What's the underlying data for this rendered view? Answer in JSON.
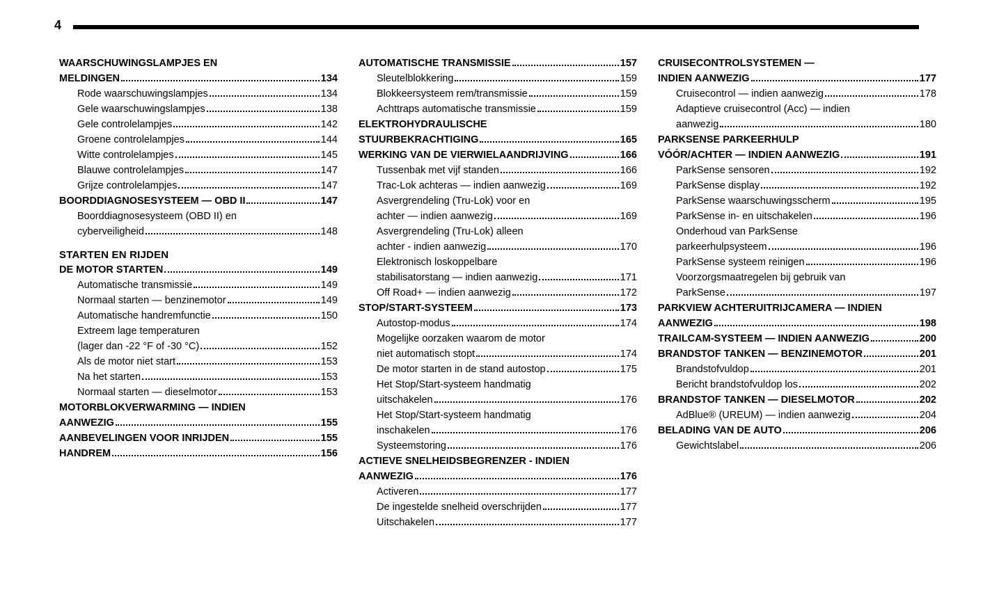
{
  "page_number": "4",
  "columns": [
    {
      "groups": [
        {
          "lines": [
            {
              "type": "wrap",
              "bold": true,
              "indent": 0,
              "text": "WAARSCHUWINGSLAMPJES EN"
            },
            {
              "type": "toc",
              "bold": true,
              "indent": 0,
              "label": "MELDINGEN",
              "page": "134"
            },
            {
              "type": "toc",
              "bold": false,
              "indent": 1,
              "label": "Rode waarschuwingslampjes",
              "page": "134"
            },
            {
              "type": "toc",
              "bold": false,
              "indent": 1,
              "label": "Gele waarschuwingslampjes",
              "page": "138"
            },
            {
              "type": "toc",
              "bold": false,
              "indent": 1,
              "label": "Gele controlelampjes",
              "page": "142"
            },
            {
              "type": "toc",
              "bold": false,
              "indent": 1,
              "label": "Groene controlelampjes",
              "page": "144"
            },
            {
              "type": "toc",
              "bold": false,
              "indent": 1,
              "label": "Witte controlelampjes",
              "page": "145"
            },
            {
              "type": "toc",
              "bold": false,
              "indent": 1,
              "label": "Blauwe controlelampjes",
              "page": "147"
            },
            {
              "type": "toc",
              "bold": false,
              "indent": 1,
              "label": "Grijze controlelampjes",
              "page": "147"
            },
            {
              "type": "toc",
              "bold": true,
              "indent": 0,
              "label": "BOORDDIAGNOSESYSTEEM — OBD II",
              "page": "147"
            },
            {
              "type": "wrap",
              "bold": false,
              "indent": 1,
              "text": "Boorddiagnosesysteem (OBD II) en"
            },
            {
              "type": "toc",
              "bold": false,
              "indent": 1,
              "label": "cyberveiligheid",
              "page": "148"
            }
          ]
        },
        {
          "title": "STARTEN EN RIJDEN",
          "lines": [
            {
              "type": "toc",
              "bold": true,
              "indent": 0,
              "label": "DE MOTOR STARTEN",
              "page": "149"
            },
            {
              "type": "toc",
              "bold": false,
              "indent": 1,
              "label": "Automatische transmissie",
              "page": "149"
            },
            {
              "type": "toc",
              "bold": false,
              "indent": 1,
              "label": "Normaal starten — benzinemotor",
              "page": "149"
            },
            {
              "type": "toc",
              "bold": false,
              "indent": 1,
              "label": "Automatische handremfunctie",
              "page": "150"
            },
            {
              "type": "wrap",
              "bold": false,
              "indent": 1,
              "text": "Extreem lage temperaturen"
            },
            {
              "type": "toc",
              "bold": false,
              "indent": 1,
              "label": "(lager dan -22 °F of -30 °C)",
              "page": "152"
            },
            {
              "type": "toc",
              "bold": false,
              "indent": 1,
              "label": "Als de motor niet start",
              "page": "153"
            },
            {
              "type": "toc",
              "bold": false,
              "indent": 1,
              "label": "Na het starten",
              "page": "153"
            },
            {
              "type": "toc",
              "bold": false,
              "indent": 1,
              "label": "Normaal starten — dieselmotor",
              "page": "153"
            },
            {
              "type": "wrap",
              "bold": true,
              "indent": 0,
              "text": "MOTORBLOKVERWARMING — INDIEN"
            },
            {
              "type": "toc",
              "bold": true,
              "indent": 0,
              "label": "AANWEZIG",
              "page": "155"
            },
            {
              "type": "toc",
              "bold": true,
              "indent": 0,
              "label": "AANBEVELINGEN VOOR INRIJDEN",
              "page": "155"
            },
            {
              "type": "toc",
              "bold": true,
              "indent": 0,
              "label": "HANDREM",
              "page": "156"
            }
          ]
        }
      ]
    },
    {
      "groups": [
        {
          "lines": [
            {
              "type": "toc",
              "bold": true,
              "indent": 0,
              "label": "AUTOMATISCHE TRANSMISSIE",
              "page": "157"
            },
            {
              "type": "toc",
              "bold": false,
              "indent": 1,
              "label": "Sleutelblokkering",
              "page": "159"
            },
            {
              "type": "toc",
              "bold": false,
              "indent": 1,
              "label": "Blokkeersysteem rem/transmissie",
              "page": "159"
            },
            {
              "type": "toc",
              "bold": false,
              "indent": 1,
              "label": "Achttraps automatische transmissie",
              "page": "159"
            },
            {
              "type": "wrap",
              "bold": true,
              "indent": 0,
              "text": "ELEKTROHYDRAULISCHE"
            },
            {
              "type": "toc",
              "bold": true,
              "indent": 0,
              "label": "STUURBEKRACHTIGING",
              "page": "165"
            },
            {
              "type": "toc",
              "bold": true,
              "indent": 0,
              "label": "WERKING VAN DE VIERWIELAANDRIJVING",
              "page": "166"
            },
            {
              "type": "toc",
              "bold": false,
              "indent": 1,
              "label": "Tussenbak met vijf standen",
              "page": "166"
            },
            {
              "type": "toc",
              "bold": false,
              "indent": 1,
              "label": "Trac-Lok achteras — indien aanwezig",
              "page": "169"
            },
            {
              "type": "wrap",
              "bold": false,
              "indent": 1,
              "text": "Asvergrendeling (Tru-Lok) voor en"
            },
            {
              "type": "toc",
              "bold": false,
              "indent": 1,
              "label": "achter — indien aanwezig",
              "page": "169"
            },
            {
              "type": "wrap",
              "bold": false,
              "indent": 1,
              "text": "Asvergrendeling (Tru-Lok) alleen"
            },
            {
              "type": "toc",
              "bold": false,
              "indent": 1,
              "label": "achter - indien aanwezig",
              "page": "170"
            },
            {
              "type": "wrap",
              "bold": false,
              "indent": 1,
              "text": "Elektronisch loskoppelbare"
            },
            {
              "type": "toc",
              "bold": false,
              "indent": 1,
              "label": "stabilisatorstang — indien aanwezig",
              "page": "171"
            },
            {
              "type": "toc",
              "bold": false,
              "indent": 1,
              "label": "Off Road+ — indien aanwezig",
              "page": "172"
            },
            {
              "type": "toc",
              "bold": true,
              "indent": 0,
              "label": "STOP/START-SYSTEEM",
              "page": "173"
            },
            {
              "type": "toc",
              "bold": false,
              "indent": 1,
              "label": "Autostop-modus",
              "page": "174"
            },
            {
              "type": "wrap",
              "bold": false,
              "indent": 1,
              "text": "Mogelijke oorzaken waarom de motor"
            },
            {
              "type": "toc",
              "bold": false,
              "indent": 1,
              "label": "niet automatisch stopt",
              "page": "174"
            },
            {
              "type": "toc",
              "bold": false,
              "indent": 1,
              "label": "De motor starten in de stand autostop",
              "page": "175"
            },
            {
              "type": "wrap",
              "bold": false,
              "indent": 1,
              "text": "Het Stop/Start-systeem handmatig"
            },
            {
              "type": "toc",
              "bold": false,
              "indent": 1,
              "label": "uitschakelen",
              "page": "176"
            },
            {
              "type": "wrap",
              "bold": false,
              "indent": 1,
              "text": "Het Stop/Start-systeem handmatig"
            },
            {
              "type": "toc",
              "bold": false,
              "indent": 1,
              "label": "inschakelen",
              "page": "176"
            },
            {
              "type": "toc",
              "bold": false,
              "indent": 1,
              "label": "Systeemstoring",
              "page": "176"
            },
            {
              "type": "wrap",
              "bold": true,
              "indent": 0,
              "text": "ACTIEVE SNELHEIDSBEGRENZER - INDIEN"
            },
            {
              "type": "toc",
              "bold": true,
              "indent": 0,
              "label": "AANWEZIG",
              "page": "176"
            },
            {
              "type": "toc",
              "bold": false,
              "indent": 1,
              "label": "Activeren",
              "page": "177"
            },
            {
              "type": "toc",
              "bold": false,
              "indent": 1,
              "label": "De ingestelde snelheid overschrijden",
              "page": "177"
            },
            {
              "type": "toc",
              "bold": false,
              "indent": 1,
              "label": "Uitschakelen",
              "page": "177"
            }
          ]
        }
      ]
    },
    {
      "groups": [
        {
          "lines": [
            {
              "type": "wrap",
              "bold": true,
              "indent": 0,
              "text": "CRUISECONTROLSYSTEMEN —"
            },
            {
              "type": "toc",
              "bold": true,
              "indent": 0,
              "label": "INDIEN AANWEZIG",
              "page": "177"
            },
            {
              "type": "toc",
              "bold": false,
              "indent": 1,
              "label": "Cruisecontrol — indien aanwezig",
              "page": "178"
            },
            {
              "type": "wrap",
              "bold": false,
              "indent": 1,
              "text": "Adaptieve cruisecontrol (Acc) — indien"
            },
            {
              "type": "toc",
              "bold": false,
              "indent": 1,
              "label": "aanwezig",
              "page": "180"
            },
            {
              "type": "wrap",
              "bold": true,
              "indent": 0,
              "text": "PARKSENSE PARKEERHULP"
            },
            {
              "type": "toc",
              "bold": true,
              "indent": 0,
              "label": "VÓÓR/ACHTER — INDIEN AANWEZIG",
              "page": "191"
            },
            {
              "type": "toc",
              "bold": false,
              "indent": 1,
              "label": "ParkSense sensoren",
              "page": "192"
            },
            {
              "type": "toc",
              "bold": false,
              "indent": 1,
              "label": "ParkSense display",
              "page": "192"
            },
            {
              "type": "toc",
              "bold": false,
              "indent": 1,
              "label": "ParkSense waarschuwingsscherm",
              "page": "195"
            },
            {
              "type": "toc",
              "bold": false,
              "indent": 1,
              "label": "ParkSense in- en uitschakelen",
              "page": "196"
            },
            {
              "type": "wrap",
              "bold": false,
              "indent": 1,
              "text": "Onderhoud van ParkSense"
            },
            {
              "type": "toc",
              "bold": false,
              "indent": 1,
              "label": "parkeerhulpsysteem",
              "page": "196"
            },
            {
              "type": "toc",
              "bold": false,
              "indent": 1,
              "label": "ParkSense systeem reinigen",
              "page": "196"
            },
            {
              "type": "wrap",
              "bold": false,
              "indent": 1,
              "text": "Voorzorgsmaatregelen bij gebruik van"
            },
            {
              "type": "toc",
              "bold": false,
              "indent": 1,
              "label": "ParkSense",
              "page": "197"
            },
            {
              "type": "wrap",
              "bold": true,
              "indent": 0,
              "text": "PARKVIEW ACHTERUITRIJCAMERA — INDIEN"
            },
            {
              "type": "toc",
              "bold": true,
              "indent": 0,
              "label": "AANWEZIG",
              "page": "198"
            },
            {
              "type": "toc",
              "bold": true,
              "indent": 0,
              "label": "TRAILCAM-SYSTEEM — INDIEN AANWEZIG",
              "page": "200"
            },
            {
              "type": "toc",
              "bold": true,
              "indent": 0,
              "label": "BRANDSTOF TANKEN — BENZINEMOTOR",
              "page": "201"
            },
            {
              "type": "toc",
              "bold": false,
              "indent": 1,
              "label": "Brandstofvuldop",
              "page": "201"
            },
            {
              "type": "toc",
              "bold": false,
              "indent": 1,
              "label": "Bericht brandstofvuldop los",
              "page": "202"
            },
            {
              "type": "toc",
              "bold": true,
              "indent": 0,
              "label": "BRANDSTOF TANKEN — DIESELMOTOR",
              "page": "202"
            },
            {
              "type": "toc",
              "bold": false,
              "indent": 1,
              "label": "AdBlue® (UREUM) — indien aanwezig",
              "page": "204"
            },
            {
              "type": "toc",
              "bold": true,
              "indent": 0,
              "label": "BELADING VAN DE AUTO",
              "page": "206"
            },
            {
              "type": "toc",
              "bold": false,
              "indent": 1,
              "label": "Gewichtslabel",
              "page": "206"
            }
          ]
        }
      ]
    }
  ]
}
